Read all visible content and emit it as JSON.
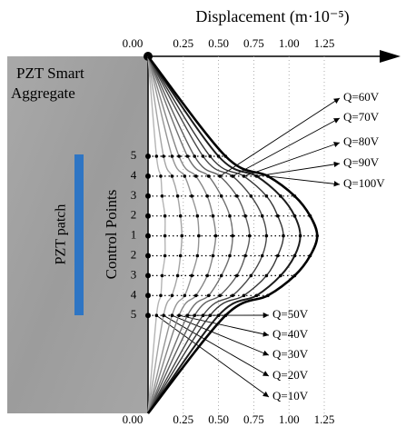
{
  "chart_data": {
    "type": "profile",
    "title": "Displacement (m·10⁻⁵)",
    "y_label": "Control Points",
    "annotations": {
      "aggregate": [
        "PZT Smart",
        "Aggregate"
      ],
      "patch": "PZT patch"
    },
    "categories": [
      "5",
      "4",
      "3",
      "2",
      "1",
      "2",
      "3",
      "4",
      "5"
    ],
    "xlim": [
      0,
      1.25
    ],
    "xticks": [
      {
        "value": 0,
        "label": "0.00"
      },
      {
        "value": 0.25,
        "label": "0.25"
      },
      {
        "value": 0.5,
        "label": "0.50"
      },
      {
        "value": 0.75,
        "label": "0.75"
      },
      {
        "value": 1,
        "label": "1.00"
      },
      {
        "value": 1.25,
        "label": "1.25"
      }
    ],
    "grid": true,
    "series": [
      {
        "name": "Q=10V",
        "color": "#b4b4b4",
        "values": [
          0.06,
          0.09,
          0.1,
          0.12,
          0.12,
          0.12,
          0.1,
          0.09,
          0.06
        ]
      },
      {
        "name": "Q=20V",
        "color": "#a4a4a4",
        "values": [
          0.11,
          0.17,
          0.21,
          0.23,
          0.24,
          0.23,
          0.21,
          0.17,
          0.11
        ]
      },
      {
        "name": "Q=30V",
        "color": "#949494",
        "values": [
          0.17,
          0.26,
          0.31,
          0.35,
          0.36,
          0.35,
          0.31,
          0.26,
          0.17
        ]
      },
      {
        "name": "Q=40V",
        "color": "#848484",
        "values": [
          0.22,
          0.34,
          0.42,
          0.46,
          0.48,
          0.46,
          0.42,
          0.34,
          0.22
        ]
      },
      {
        "name": "Q=50V",
        "color": "#707070",
        "values": [
          0.28,
          0.43,
          0.52,
          0.58,
          0.6,
          0.58,
          0.52,
          0.43,
          0.28
        ]
      },
      {
        "name": "Q=60V",
        "color": "#5c5c5c",
        "values": [
          0.33,
          0.51,
          0.63,
          0.69,
          0.72,
          0.69,
          0.63,
          0.51,
          0.33
        ]
      },
      {
        "name": "Q=70V",
        "color": "#484848",
        "values": [
          0.39,
          0.6,
          0.73,
          0.81,
          0.84,
          0.81,
          0.73,
          0.6,
          0.39
        ]
      },
      {
        "name": "Q=80V",
        "color": "#343434",
        "values": [
          0.44,
          0.68,
          0.84,
          0.92,
          0.96,
          0.92,
          0.84,
          0.68,
          0.44
        ]
      },
      {
        "name": "Q=90V",
        "color": "#1c1c1c",
        "values": [
          0.5,
          0.77,
          0.94,
          1.04,
          1.08,
          1.04,
          0.94,
          0.77,
          0.5
        ]
      },
      {
        "name": "Q=100V",
        "color": "#000000",
        "values": [
          0.55,
          0.85,
          1.04,
          1.15,
          1.2,
          1.15,
          1.04,
          0.85,
          0.55
        ]
      }
    ]
  }
}
